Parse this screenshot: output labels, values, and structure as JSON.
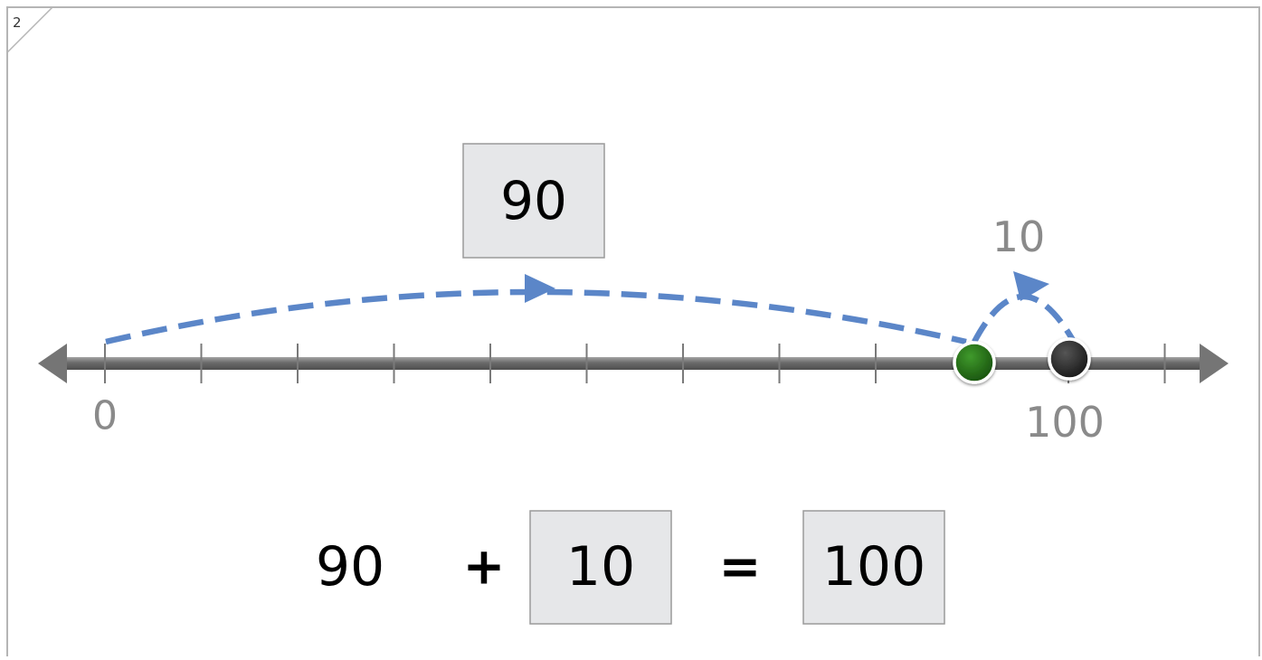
{
  "slide": {
    "number": "2"
  },
  "number_line": {
    "start_label": "0",
    "end_label": "100",
    "tick_count": 12,
    "jump_large_value": "90",
    "jump_small_value": "10",
    "green_point_value": 90,
    "black_point_value": 100
  },
  "equation": {
    "addend1": "90",
    "plus": "+",
    "addend2": "10",
    "equals": "=",
    "sum": "100"
  },
  "colors": {
    "arc": "#5b86c8",
    "box_fill": "#e6e7e9",
    "box_border": "#9a9a9a",
    "axis": "#6e6e6e",
    "label_gray": "#8a8a8a",
    "green_dot": "#1e6b12",
    "black_dot": "#2a2a2a",
    "frame": "#b5b5b5"
  }
}
